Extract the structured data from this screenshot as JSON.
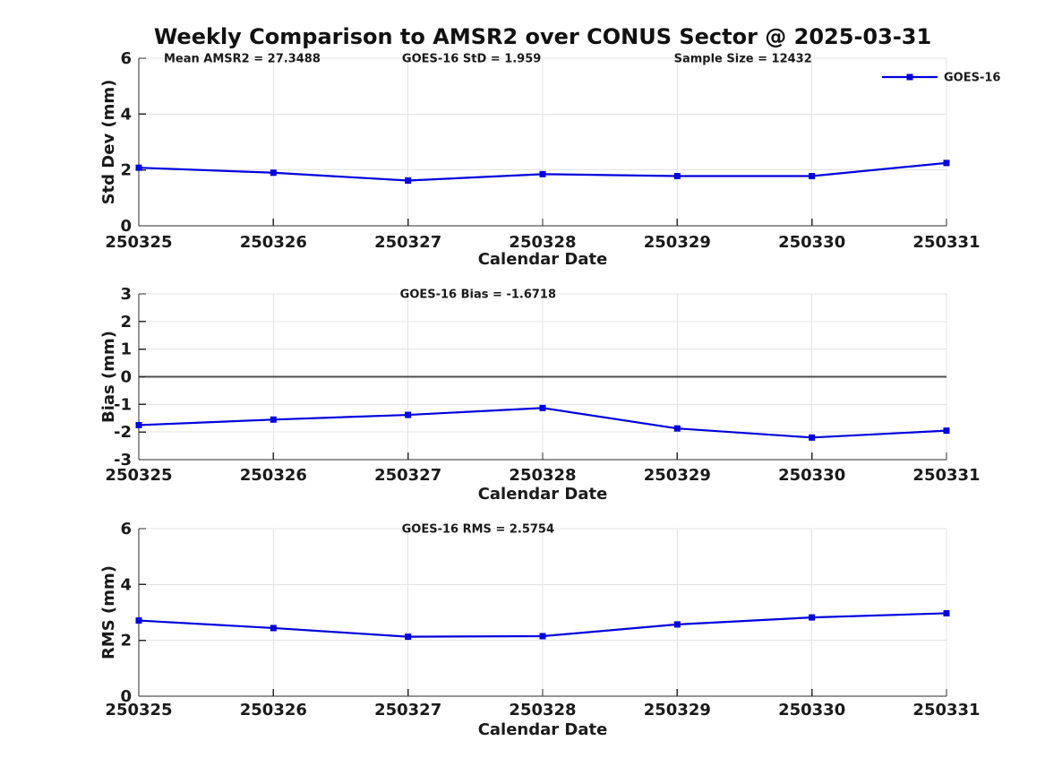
{
  "title": "Weekly Comparison to AMSR2 over CONUS Sector @ 2025-03-31",
  "colors": {
    "series": "#0000dd",
    "grid": "#e3e3e3",
    "axis": "#2b2b2b",
    "text": "#1a1a1a",
    "zero_line": "#4d4d4d",
    "background": "#ffffff"
  },
  "legend": {
    "label": "GOES-16",
    "position": "top-right"
  },
  "chart_data": [
    {
      "type": "line",
      "ylabel": "Std Dev (mm)",
      "xlabel": "Calendar Date",
      "ylim": [
        0,
        6
      ],
      "yticks": [
        0,
        2,
        4,
        6
      ],
      "categories": [
        "250325",
        "250326",
        "250327",
        "250328",
        "250329",
        "250330",
        "250331"
      ],
      "series": [
        {
          "name": "GOES-16",
          "values": [
            2.08,
            1.9,
            1.62,
            1.85,
            1.78,
            1.78,
            2.25
          ]
        }
      ],
      "annotations": [
        {
          "text": "Mean AMSR2 = 27.3488",
          "fx": 0.128
        },
        {
          "text": "GOES-16 StD = 1.959",
          "fx": 0.412
        },
        {
          "text": "Sample Size = 12432",
          "fx": 0.748
        }
      ],
      "legend": true,
      "zero_line": false,
      "grid": true
    },
    {
      "type": "line",
      "ylabel": "Bias (mm)",
      "xlabel": "Calendar Date",
      "ylim": [
        -3,
        3
      ],
      "yticks": [
        -3,
        -2,
        -1,
        0,
        1,
        2,
        3
      ],
      "categories": [
        "250325",
        "250326",
        "250327",
        "250328",
        "250329",
        "250330",
        "250331"
      ],
      "series": [
        {
          "name": "GOES-16",
          "values": [
            -1.75,
            -1.55,
            -1.38,
            -1.13,
            -1.87,
            -2.2,
            -1.95
          ]
        }
      ],
      "annotations": [
        {
          "text": "GOES-16 Bias  = -1.6718",
          "fx": 0.42
        }
      ],
      "legend": false,
      "zero_line": true,
      "grid": true
    },
    {
      "type": "line",
      "ylabel": "RMS (mm)",
      "xlabel": "Calendar Date",
      "ylim": [
        0,
        6
      ],
      "yticks": [
        0,
        2,
        4,
        6
      ],
      "categories": [
        "250325",
        "250326",
        "250327",
        "250328",
        "250329",
        "250330",
        "250331"
      ],
      "series": [
        {
          "name": "GOES-16",
          "values": [
            2.71,
            2.44,
            2.13,
            2.15,
            2.57,
            2.82,
            2.97
          ]
        }
      ],
      "annotations": [
        {
          "text": "GOES-16 RMS = 2.5754",
          "fx": 0.42
        }
      ],
      "legend": false,
      "zero_line": false,
      "grid": true
    }
  ]
}
